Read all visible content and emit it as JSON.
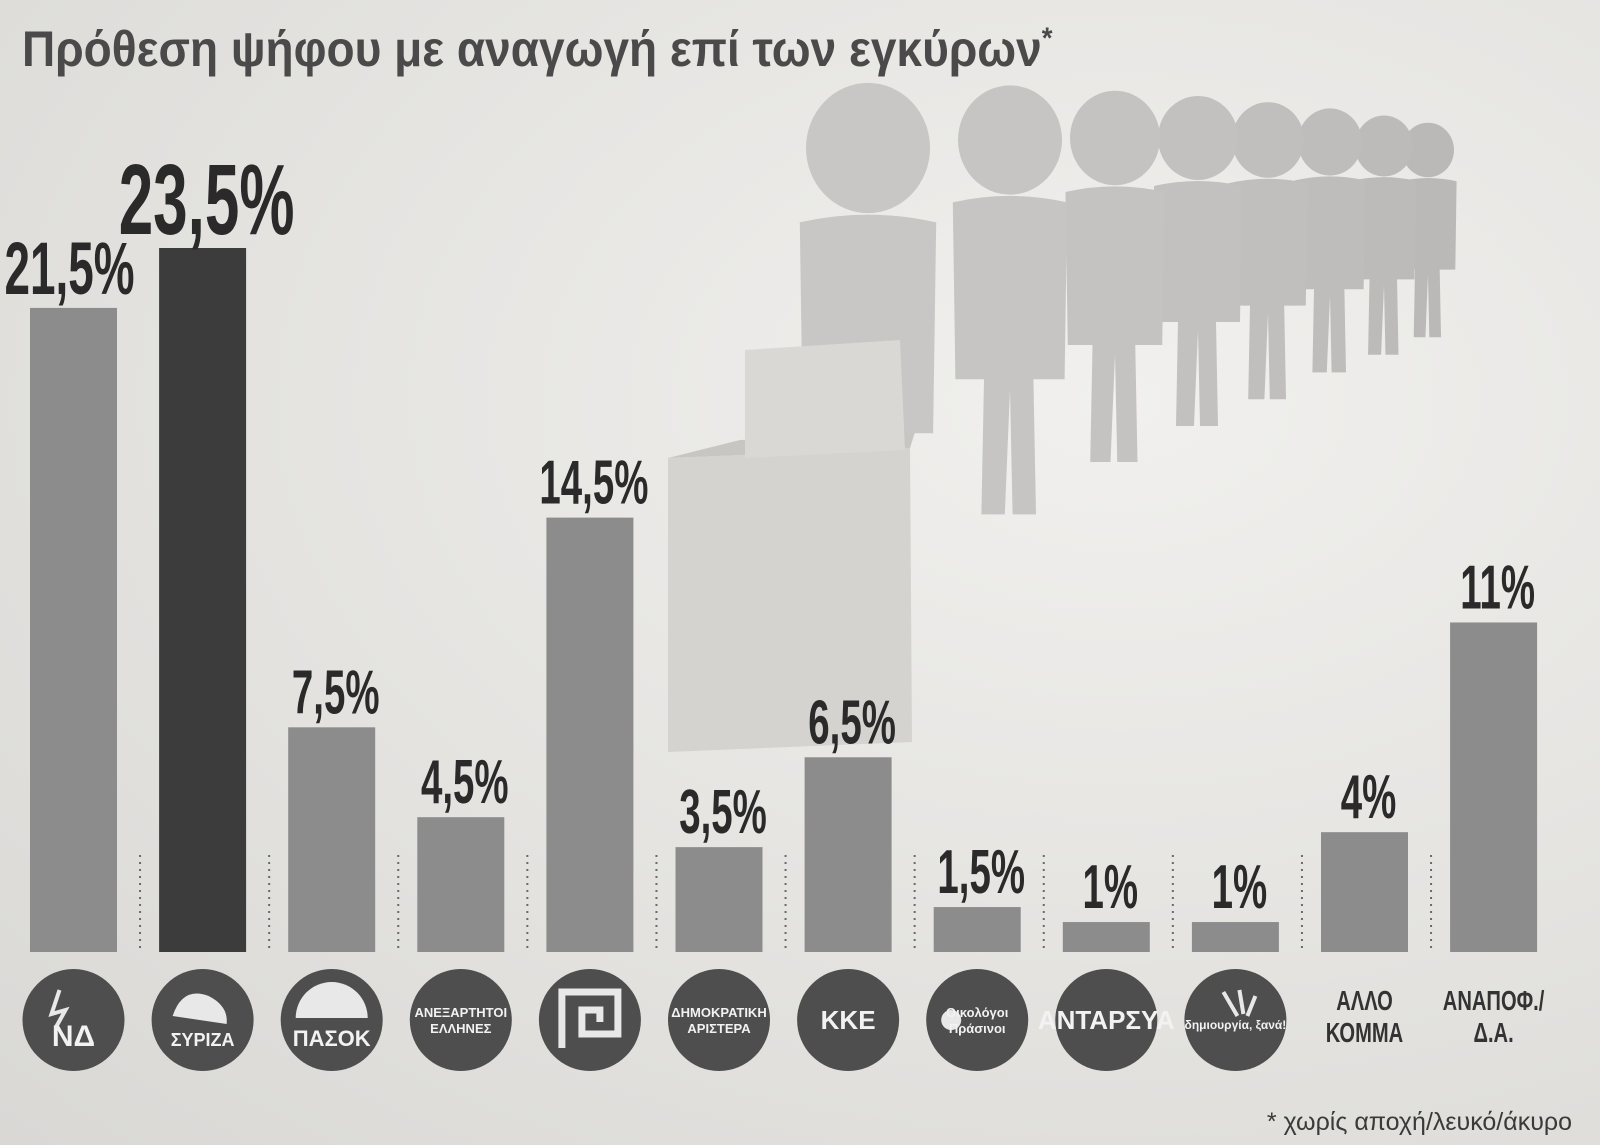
{
  "title": "Πρόθεση ψήφου με αναγωγή επί των εγκύρων",
  "title_mark": "*",
  "footnote": "* χωρίς αποχή/λευκό/άκυρο",
  "colors": {
    "bar_default": "#8c8c8c",
    "bar_highlight": "#3c3c3c",
    "logo_circle": "#4e4e4e",
    "label": "#2a2a2a",
    "separator": "#6a6a6a"
  },
  "chart_data": {
    "type": "bar",
    "title": "Πρόθεση ψήφου με αναγωγή επί των εγκύρων",
    "xlabel": "",
    "ylabel": "",
    "ylim": [
      0,
      25
    ],
    "grid": false,
    "categories": [
      "ΝΔ",
      "ΣΥΡΙΖΑ",
      "ΠΑΣΟΚ",
      "ΑΝΕΞΑΡΤΗΤΟΙ ΕΛΛΗΝΕΣ",
      "Χρυσή Αυγή",
      "ΔΗΜΟΚΡΑΤΙΚΗ ΑΡΙΣΤΕΡΑ",
      "ΚΚΕ",
      "Οικολόγοι Πράσινοι",
      "ΑΝΤΑΡΣΥΑ",
      "δημιουργία, ξανά!",
      "ΑΛΛΟ ΚΟΜΜΑ",
      "ΑΝΑΠΟΦ./Δ.Α."
    ],
    "values": [
      21.5,
      23.5,
      7.5,
      4.5,
      14.5,
      3.5,
      6.5,
      1.5,
      1,
      1,
      4,
      11
    ],
    "value_labels": [
      "21,5%",
      "23,5%",
      "7,5%",
      "4,5%",
      "14,5%",
      "3,5%",
      "6,5%",
      "1,5%",
      "1%",
      "1%",
      "4%",
      "11%"
    ],
    "highlight_index": 1,
    "party_marks": [
      {
        "kind": "logo",
        "icon": "nd-logo-icon",
        "lines": [
          "ΝΔ"
        ]
      },
      {
        "kind": "logo",
        "icon": "syriza-logo-icon",
        "lines": [
          "ΣΥΡΙΖΑ"
        ]
      },
      {
        "kind": "logo",
        "icon": "pasok-logo-icon",
        "lines": [
          "ΠΑΣΟΚ"
        ]
      },
      {
        "kind": "logo",
        "icon": "anel-logo-icon",
        "lines": [
          "ΑΝΕΞΑΡΤΗΤΟΙ",
          "ΕΛΛΗΝΕΣ"
        ]
      },
      {
        "kind": "logo",
        "icon": "meander-logo-icon",
        "lines": []
      },
      {
        "kind": "logo",
        "icon": "dimar-logo-icon",
        "lines": [
          "ΔΗΜΟΚΡΑΤΙΚΗ",
          "ΑΡΙΣΤΕΡΑ"
        ]
      },
      {
        "kind": "logo",
        "icon": "kke-logo-icon",
        "lines": [
          "ΚΚΕ"
        ]
      },
      {
        "kind": "logo",
        "icon": "ecologists-logo-icon",
        "lines": [
          "Οικολόγοι",
          "Πράσινοι"
        ]
      },
      {
        "kind": "logo",
        "icon": "antarsya-logo-icon",
        "lines": [
          "ΑΝΤΑΡΣΥΑ"
        ]
      },
      {
        "kind": "logo",
        "icon": "dimiourgia-logo-icon",
        "lines": [
          "δημιουργία, ξανά!"
        ]
      },
      {
        "kind": "text",
        "icon": "",
        "lines": [
          "ΑΛΛΟ",
          "ΚΟΜΜΑ"
        ]
      },
      {
        "kind": "text",
        "icon": "",
        "lines": [
          "ΑΝΑΠΟΦ./",
          "Δ.Α."
        ]
      }
    ]
  }
}
